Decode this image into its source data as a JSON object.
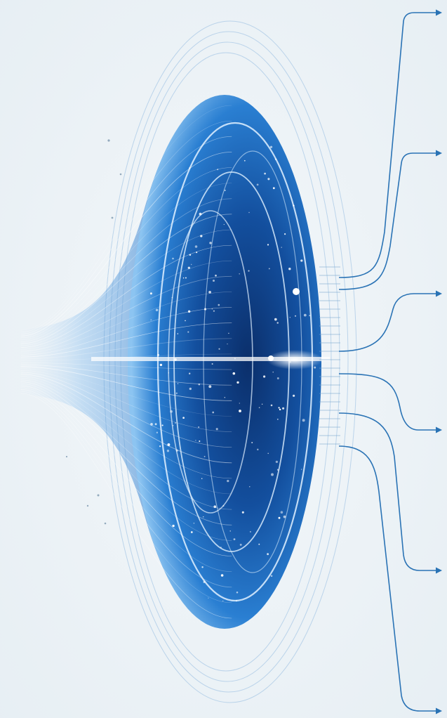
{
  "colors": {
    "background": "#eef3f6",
    "funnel_deep": "#0d3f86",
    "funnel_mid": "#1f6fc4",
    "funnel_light": "#7fb7ec",
    "glow": "#e8f6ff",
    "connector": "#2a73b5"
  },
  "connectors": {
    "count": 6,
    "arrowhead": "arrow-right"
  }
}
